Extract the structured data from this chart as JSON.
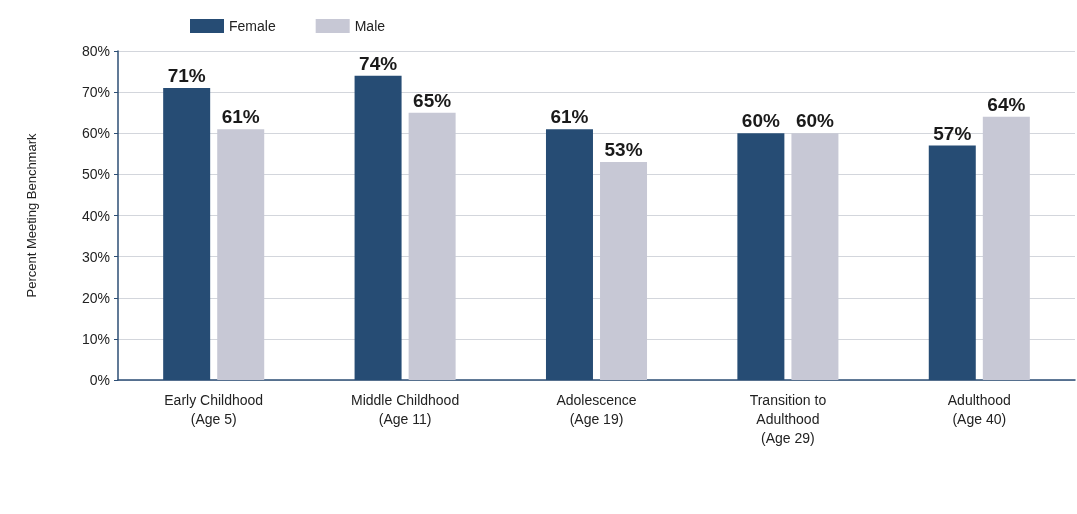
{
  "chart_data": {
    "type": "bar",
    "ylabel": "Percent Meeting Benchmark",
    "categories": [
      "Early Childhood\n(Age 5)",
      "Middle Childhood\n(Age 11)",
      "Adolescence\n(Age 19)",
      "Transition to\nAdulthood\n(Age 29)",
      "Adulthood\n(Age 40)"
    ],
    "series": [
      {
        "name": "Female",
        "color": "#264c74",
        "values": [
          71,
          74,
          61,
          60,
          57
        ],
        "value_labels": [
          "71%",
          "74%",
          "61%",
          "60%",
          "57%"
        ]
      },
      {
        "name": "Male",
        "color": "#c7c8d5",
        "values": [
          61,
          65,
          53,
          60,
          64
        ],
        "value_labels": [
          "61%",
          "65%",
          "53%",
          "60%",
          "64%"
        ]
      }
    ],
    "ylim": [
      0,
      80
    ],
    "yticks": [
      {
        "value": 0,
        "label": "0%"
      },
      {
        "value": 10,
        "label": "10%"
      },
      {
        "value": 20,
        "label": "20%"
      },
      {
        "value": 30,
        "label": "30%"
      },
      {
        "value": 40,
        "label": "40%"
      },
      {
        "value": 50,
        "label": "50%"
      },
      {
        "value": 60,
        "label": "60%"
      },
      {
        "value": 70,
        "label": "70%"
      },
      {
        "value": 80,
        "label": "80%"
      }
    ],
    "grid": "y",
    "legend": "top left"
  }
}
